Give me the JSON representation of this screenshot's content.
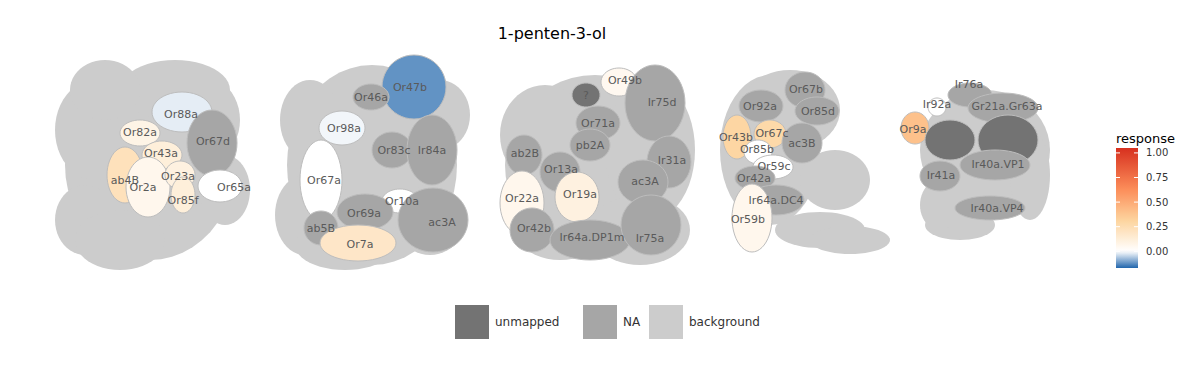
{
  "chart_data": {
    "type": "glomerulus_map",
    "title": "1-penten-3-ol",
    "panels": [
      {
        "fill": "background",
        "glomeruli": [
          {
            "label": "Or88a",
            "response": -0.02
          },
          {
            "label": "Or67d",
            "fill": "NA"
          },
          {
            "label": "Or82a",
            "response": 0.08
          },
          {
            "label": "ab4B",
            "response": 0.22
          },
          {
            "label": "Or43a",
            "response": 0.12
          },
          {
            "label": "Or2a",
            "response": 0.06
          },
          {
            "label": "Or23a",
            "response": 0.1
          },
          {
            "label": "Or85f",
            "response": 0.12
          },
          {
            "label": "Or65a",
            "response": 0.0
          }
        ]
      },
      {
        "fill": "background",
        "glomeruli": [
          {
            "label": "Or47b",
            "response": -0.12
          },
          {
            "label": "Or46a",
            "fill": "NA"
          },
          {
            "label": "Or98a",
            "response": -0.01
          },
          {
            "label": "Or83c",
            "fill": "NA"
          },
          {
            "label": "Ir84a",
            "fill": "NA"
          },
          {
            "label": "Or67a",
            "response": 0.0
          },
          {
            "label": "Or10a",
            "response": 0.0
          },
          {
            "label": "Or69a",
            "fill": "NA"
          },
          {
            "label": "ab5B",
            "fill": "NA"
          },
          {
            "label": "Or7a",
            "response": 0.18
          },
          {
            "label": "ac3A",
            "fill": "NA"
          }
        ]
      },
      {
        "fill": "background",
        "glomeruli": [
          {
            "label": "?",
            "fill": "unmapped"
          },
          {
            "label": "Or49b",
            "response": 0.05
          },
          {
            "label": "Or71a",
            "fill": "NA"
          },
          {
            "label": "Ir75d",
            "fill": "NA"
          },
          {
            "label": "pb2A",
            "fill": "NA"
          },
          {
            "label": "ab2B",
            "fill": "NA"
          },
          {
            "label": "Or13a",
            "fill": "NA"
          },
          {
            "label": "Ir31a",
            "fill": "NA"
          },
          {
            "label": "ac3A",
            "fill": "NA"
          },
          {
            "label": "Or22a",
            "response": 0.06
          },
          {
            "label": "Or19a",
            "response": 0.1
          },
          {
            "label": "Or42b",
            "fill": "NA"
          },
          {
            "label": "Ir64a.DP1m",
            "fill": "NA"
          },
          {
            "label": "Ir75a",
            "fill": "NA"
          }
        ]
      },
      {
        "fill": "background",
        "glomeruli": [
          {
            "label": "Or92a",
            "fill": "NA"
          },
          {
            "label": "Or67b",
            "fill": "NA"
          },
          {
            "label": "Or85d",
            "fill": "NA"
          },
          {
            "label": "Or43b",
            "response": 0.3
          },
          {
            "label": "Or67c",
            "response": 0.28
          },
          {
            "label": "ac3B",
            "fill": "NA"
          },
          {
            "label": "Or85b",
            "response": 0.0
          },
          {
            "label": "Or59c",
            "response": 0.0
          },
          {
            "label": "Or42a",
            "fill": "NA"
          },
          {
            "label": "Ir64a.DC4",
            "fill": "NA"
          },
          {
            "label": "Or59b",
            "response": 0.06
          }
        ]
      },
      {
        "fill": "background",
        "glomeruli": [
          {
            "label": "Ir76a",
            "fill": "NA"
          },
          {
            "label": "Ir92a",
            "response": 0.0
          },
          {
            "label": "Gr21a.Gr63a",
            "fill": "NA"
          },
          {
            "label": "Or9a",
            "response": 0.4
          },
          {
            "label": null,
            "fill": "unmapped"
          },
          {
            "label": null,
            "fill": "unmapped"
          },
          {
            "label": "Ir40a.VP1",
            "fill": "NA"
          },
          {
            "label": "Ir41a",
            "fill": "NA"
          },
          {
            "label": "Ir40a.VP4",
            "fill": "NA"
          }
        ]
      }
    ],
    "legend": [
      {
        "label": "unmapped",
        "color": "#737373"
      },
      {
        "label": "NA",
        "color": "#a6a6a6"
      },
      {
        "label": "background",
        "color": "#cccccc"
      }
    ],
    "colorbar": {
      "title": "response",
      "range": [
        -0.17,
        1.05
      ],
      "ticks": [
        {
          "value": 0,
          "label": "0.00"
        },
        {
          "value": 0.25,
          "label": "0.25"
        },
        {
          "value": 0.5,
          "label": "0.50"
        },
        {
          "value": 0.75,
          "label": "0.75"
        },
        {
          "value": 1,
          "label": "1.00"
        }
      ]
    }
  }
}
